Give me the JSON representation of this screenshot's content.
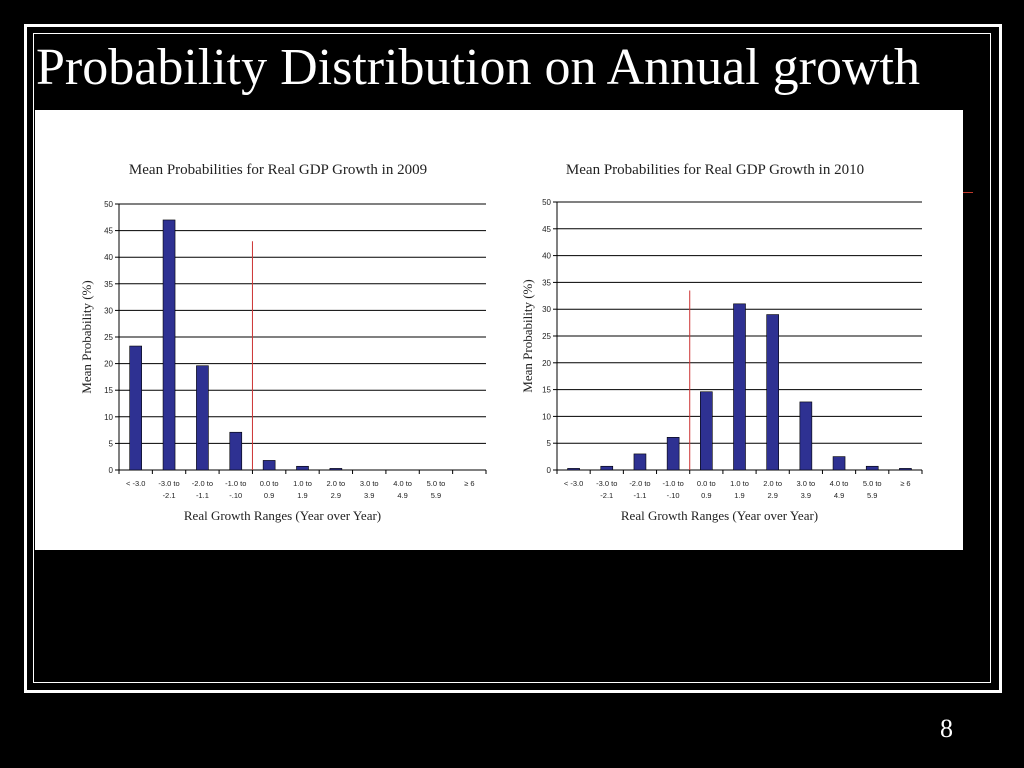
{
  "slide": {
    "title": "Probability Distribution on Annual growth",
    "page_number": "8",
    "colors": {
      "background": "#000000",
      "bar": "#2e3192",
      "marker": "#cc3333",
      "panel": "#ffffff"
    }
  },
  "chart_data": [
    {
      "type": "bar",
      "title": "Mean Probabilities for Real GDP Growth in 2009",
      "xlabel": "Real Growth Ranges (Year over Year)",
      "ylabel": "Mean Probability (%)",
      "ylim": [
        0,
        50
      ],
      "yticks": [
        0,
        5,
        10,
        15,
        20,
        25,
        30,
        35,
        40,
        45,
        50
      ],
      "grid": true,
      "categories": [
        [
          "< -3.0",
          ""
        ],
        [
          "-3.0 to",
          "-2.1"
        ],
        [
          "-2.0 to",
          "-1.1"
        ],
        [
          "-1.0 to",
          "-.10"
        ],
        [
          "0.0 to",
          "0.9"
        ],
        [
          "1.0 to",
          "1.9"
        ],
        [
          "2.0 to",
          "2.9"
        ],
        [
          "3.0 to",
          "3.9"
        ],
        [
          "4.0 to",
          "4.9"
        ],
        [
          "5.0 to",
          "5.9"
        ],
        [
          "≥ 6",
          ""
        ]
      ],
      "values": [
        23.3,
        47.0,
        19.6,
        7.1,
        1.8,
        0.7,
        0.3,
        0.0,
        0.0,
        0.0,
        0.0
      ],
      "marker_between": [
        3,
        4
      ],
      "marker_top": 43
    },
    {
      "type": "bar",
      "title": "Mean Probabilities for Real GDP Growth in 2010",
      "xlabel": "Real Growth Ranges (Year over Year)",
      "ylabel": "Mean Probability (%)",
      "ylim": [
        0,
        50
      ],
      "yticks": [
        0,
        5,
        10,
        15,
        20,
        25,
        30,
        35,
        40,
        45,
        50
      ],
      "grid": true,
      "categories": [
        [
          "< -3.0",
          ""
        ],
        [
          "-3.0 to",
          "-2.1"
        ],
        [
          "-2.0 to",
          "-1.1"
        ],
        [
          "-1.0 to",
          "-.10"
        ],
        [
          "0.0 to",
          "0.9"
        ],
        [
          "1.0 to",
          "1.9"
        ],
        [
          "2.0 to",
          "2.9"
        ],
        [
          "3.0 to",
          "3.9"
        ],
        [
          "4.0 to",
          "4.9"
        ],
        [
          "5.0 to",
          "5.9"
        ],
        [
          "≥ 6",
          ""
        ]
      ],
      "values": [
        0.3,
        0.7,
        3.0,
        6.1,
        14.6,
        31.0,
        29.0,
        12.7,
        2.5,
        0.7,
        0.3
      ],
      "marker_between": [
        3,
        4
      ],
      "marker_top": 33.5
    }
  ]
}
